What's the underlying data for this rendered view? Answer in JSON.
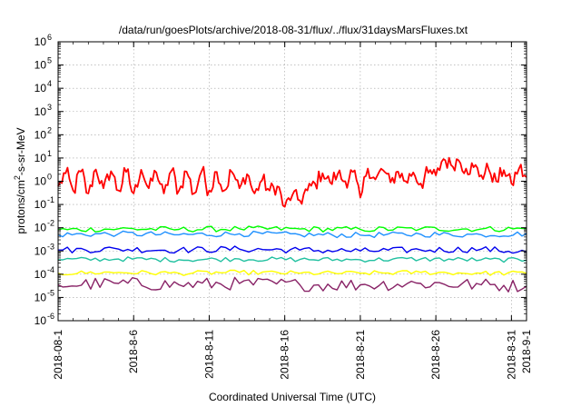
{
  "chart_data": {
    "type": "line",
    "title": "/data/run/goesPlots/archive/2018-08-31/flux/../flux/31daysMarsFluxes.txt",
    "xlabel": "Coordinated Universal Time (UTC)",
    "ylabel": {
      "pre": "protons/cm",
      "sup": "2",
      "post": "-s-sr-MeV"
    },
    "x_range": [
      "2018-08-01",
      "2018-09-01"
    ],
    "y_scale": "log",
    "y_range": [
      1e-06,
      1000000.0
    ],
    "grid": true,
    "legend": "none",
    "x_ticks": [
      {
        "date": "2018-08-01",
        "label": "2018-08-1"
      },
      {
        "date": "2018-08-06",
        "label": "2018-8-6"
      },
      {
        "date": "2018-08-11",
        "label": "2018-8-11"
      },
      {
        "date": "2018-08-16",
        "label": "2018-8-16"
      },
      {
        "date": "2018-08-21",
        "label": "2018-8-21"
      },
      {
        "date": "2018-08-26",
        "label": "2018-8-26"
      },
      {
        "date": "2018-08-31",
        "label": "2018-8-31"
      },
      {
        "date": "2018-09-01",
        "label": "2018-9-1"
      }
    ],
    "y_ticks": [
      {
        "value": 1e-06,
        "base": "10",
        "exp": "-6"
      },
      {
        "value": 1e-05,
        "base": "10",
        "exp": "-5"
      },
      {
        "value": 0.0001,
        "base": "10",
        "exp": "-4"
      },
      {
        "value": 0.001,
        "base": "10",
        "exp": "-3"
      },
      {
        "value": 0.01,
        "base": "10",
        "exp": "-2"
      },
      {
        "value": 0.1,
        "base": "10",
        "exp": "-1"
      },
      {
        "value": 1.0,
        "base": "10",
        "exp": "0"
      },
      {
        "value": 10.0,
        "base": "10",
        "exp": "1"
      },
      {
        "value": 100.0,
        "base": "10",
        "exp": "2"
      },
      {
        "value": 1000.0,
        "base": "10",
        "exp": "3"
      },
      {
        "value": 10000.0,
        "base": "10",
        "exp": "4"
      },
      {
        "value": 100000.0,
        "base": "10",
        "exp": "5"
      },
      {
        "value": 1000000.0,
        "base": "10",
        "exp": "6"
      }
    ],
    "series": [
      {
        "color": "#ff0000",
        "x": [
          "2018-08-01T00:00",
          "2018-08-01T12:00",
          "2018-08-02T00:00",
          "2018-08-02T12:00",
          "2018-08-03T00:00",
          "2018-08-03T12:00",
          "2018-08-04T00:00",
          "2018-08-04T12:00",
          "2018-08-05T00:00",
          "2018-08-05T12:00",
          "2018-08-06T00:00",
          "2018-08-06T12:00",
          "2018-08-07T00:00",
          "2018-08-07T12:00",
          "2018-08-08T00:00",
          "2018-08-08T12:00",
          "2018-08-09T00:00",
          "2018-08-09T12:00",
          "2018-08-10T00:00",
          "2018-08-10T12:00",
          "2018-08-11T00:00",
          "2018-08-11T12:00",
          "2018-08-12T00:00",
          "2018-08-12T12:00",
          "2018-08-13T00:00",
          "2018-08-13T12:00",
          "2018-08-14T00:00",
          "2018-08-14T12:00",
          "2018-08-15T00:00",
          "2018-08-15T12:00",
          "2018-08-16T00:00",
          "2018-08-16T12:00",
          "2018-08-17T00:00",
          "2018-08-17T12:00",
          "2018-08-18T00:00",
          "2018-08-18T12:00",
          "2018-08-19T00:00",
          "2018-08-19T12:00",
          "2018-08-20T00:00",
          "2018-08-20T12:00",
          "2018-08-21T00:00",
          "2018-08-21T12:00",
          "2018-08-22T00:00",
          "2018-08-22T12:00",
          "2018-08-23T00:00",
          "2018-08-23T12:00",
          "2018-08-24T00:00",
          "2018-08-24T12:00",
          "2018-08-25T00:00",
          "2018-08-25T12:00",
          "2018-08-26T00:00",
          "2018-08-26T12:00",
          "2018-08-27T00:00",
          "2018-08-27T12:00",
          "2018-08-28T00:00",
          "2018-08-28T12:00",
          "2018-08-29T00:00",
          "2018-08-29T12:00",
          "2018-08-30T00:00",
          "2018-08-30T12:00",
          "2018-08-31T00:00",
          "2018-08-31T12:00",
          "2018-09-01T00:00"
        ],
        "values": [
          0.6,
          2.2,
          0.4,
          2.6,
          0.3,
          3.2,
          0.5,
          2.7,
          0.4,
          2.5,
          0.3,
          3.1,
          0.5,
          2.4,
          0.3,
          2.8,
          0.4,
          2.6,
          0.3,
          2.7,
          0.4,
          2.5,
          0.4,
          2.5,
          0.5,
          2.0,
          0.3,
          1.1,
          0.4,
          0.6,
          0.08,
          0.25,
          0.15,
          0.4,
          0.8,
          2.2,
          0.9,
          2.0,
          1.0,
          2.5,
          0.2,
          3.5,
          1.2,
          3.0,
          0.9,
          2.6,
          1.0,
          2.4,
          0.8,
          2.3,
          1.8,
          9.0,
          5.0,
          8.0,
          3.5,
          4.0,
          1.8,
          3.2,
          1.0,
          3.0,
          0.8,
          3.5,
          1.5
        ]
      },
      {
        "color": "#00ff00",
        "x": [
          "2018-08-01",
          "2018-08-05",
          "2018-08-09",
          "2018-08-13",
          "2018-08-17",
          "2018-08-21",
          "2018-08-25",
          "2018-08-29",
          "2018-09-01"
        ],
        "values": [
          0.008,
          0.009,
          0.0085,
          0.009,
          0.0088,
          0.0085,
          0.009,
          0.0088,
          0.009
        ]
      },
      {
        "color": "#1e90ff",
        "x": [
          "2018-08-01",
          "2018-08-05",
          "2018-08-09",
          "2018-08-13",
          "2018-08-17",
          "2018-08-21",
          "2018-08-25",
          "2018-08-29",
          "2018-09-01"
        ],
        "values": [
          0.005,
          0.0055,
          0.005,
          0.0055,
          0.005,
          0.0048,
          0.0052,
          0.005,
          0.0055
        ]
      },
      {
        "color": "#0000ee",
        "x": [
          "2018-08-01",
          "2018-08-05",
          "2018-08-09",
          "2018-08-13",
          "2018-08-17",
          "2018-08-21",
          "2018-08-25",
          "2018-08-29",
          "2018-09-01"
        ],
        "values": [
          0.0011,
          0.0012,
          0.0011,
          0.0012,
          0.0011,
          0.001,
          0.0011,
          0.0012,
          0.0009
        ]
      },
      {
        "color": "#20c0a0",
        "x": [
          "2018-08-01",
          "2018-08-05",
          "2018-08-09",
          "2018-08-13",
          "2018-08-17",
          "2018-08-21",
          "2018-08-25",
          "2018-08-29",
          "2018-09-01"
        ],
        "values": [
          0.00042,
          0.00045,
          0.00042,
          0.00045,
          0.00043,
          0.00042,
          0.00045,
          0.00042,
          0.0004
        ]
      },
      {
        "color": "#ffff00",
        "x": [
          "2018-08-01",
          "2018-08-05",
          "2018-08-09",
          "2018-08-13",
          "2018-08-17",
          "2018-08-21",
          "2018-08-25",
          "2018-08-29",
          "2018-09-01"
        ],
        "values": [
          0.00011,
          0.00012,
          0.00011,
          0.00012,
          0.00011,
          0.00011,
          0.00012,
          0.00011,
          0.00011
        ]
      },
      {
        "color": "#882266",
        "x": [
          "2018-08-01",
          "2018-08-05",
          "2018-08-09",
          "2018-08-13",
          "2018-08-17",
          "2018-08-21",
          "2018-08-25",
          "2018-08-29",
          "2018-09-01"
        ],
        "values": [
          3.5e-05,
          4e-05,
          3.5e-05,
          4e-05,
          3.5e-05,
          3.5e-05,
          4e-05,
          3.5e-05,
          3e-05
        ]
      }
    ]
  }
}
